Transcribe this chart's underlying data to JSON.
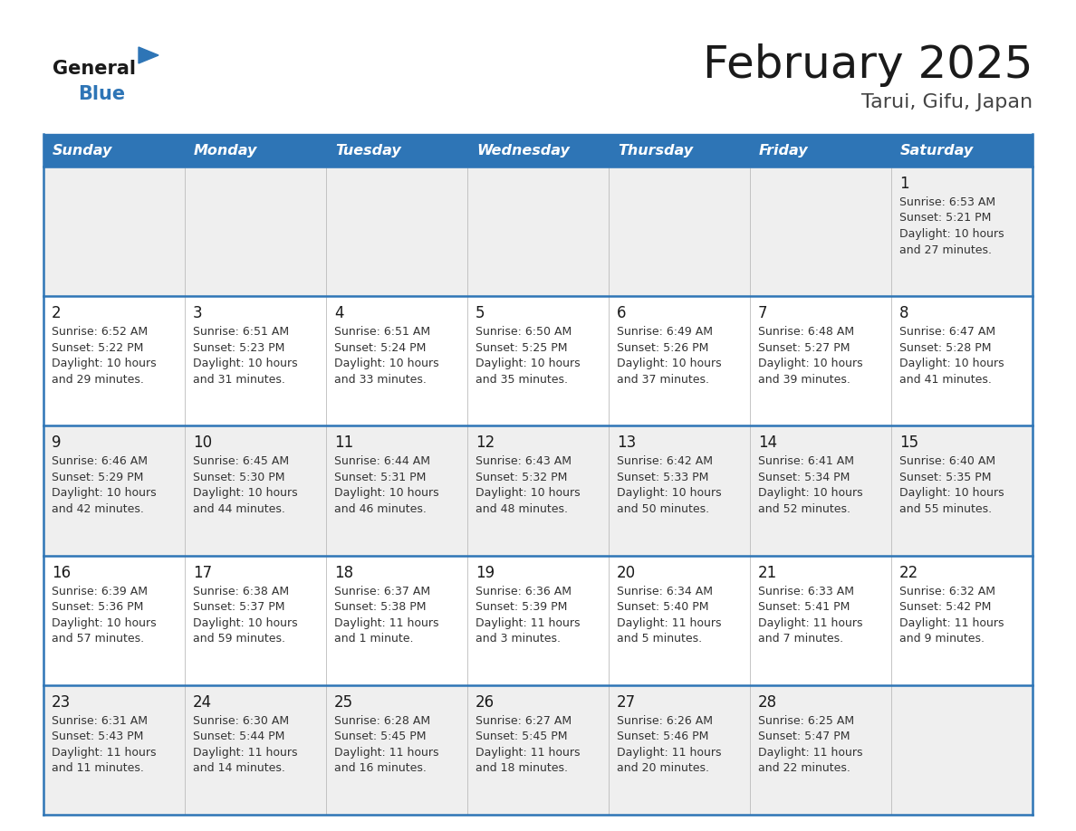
{
  "title": "February 2025",
  "subtitle": "Tarui, Gifu, Japan",
  "header_bg": "#2E75B6",
  "header_text_color": "#FFFFFF",
  "cell_bg_odd": "#EFEFEF",
  "cell_bg_even": "#FFFFFF",
  "cell_border_color": "#2E75B6",
  "day_headers": [
    "Sunday",
    "Monday",
    "Tuesday",
    "Wednesday",
    "Thursday",
    "Friday",
    "Saturday"
  ],
  "title_color": "#1a1a1a",
  "subtitle_color": "#444444",
  "day_number_color": "#1a1a1a",
  "cell_text_color": "#333333",
  "logo_general_color": "#1a1a1a",
  "logo_blue_color": "#2E75B6",
  "logo_triangle_color": "#2E75B6",
  "calendar_data": [
    [
      null,
      null,
      null,
      null,
      null,
      null,
      {
        "day": 1,
        "sunrise": "6:53 AM",
        "sunset": "5:21 PM",
        "daylight": "10 hours and 27 minutes."
      }
    ],
    [
      {
        "day": 2,
        "sunrise": "6:52 AM",
        "sunset": "5:22 PM",
        "daylight": "10 hours and 29 minutes."
      },
      {
        "day": 3,
        "sunrise": "6:51 AM",
        "sunset": "5:23 PM",
        "daylight": "10 hours and 31 minutes."
      },
      {
        "day": 4,
        "sunrise": "6:51 AM",
        "sunset": "5:24 PM",
        "daylight": "10 hours and 33 minutes."
      },
      {
        "day": 5,
        "sunrise": "6:50 AM",
        "sunset": "5:25 PM",
        "daylight": "10 hours and 35 minutes."
      },
      {
        "day": 6,
        "sunrise": "6:49 AM",
        "sunset": "5:26 PM",
        "daylight": "10 hours and 37 minutes."
      },
      {
        "day": 7,
        "sunrise": "6:48 AM",
        "sunset": "5:27 PM",
        "daylight": "10 hours and 39 minutes."
      },
      {
        "day": 8,
        "sunrise": "6:47 AM",
        "sunset": "5:28 PM",
        "daylight": "10 hours and 41 minutes."
      }
    ],
    [
      {
        "day": 9,
        "sunrise": "6:46 AM",
        "sunset": "5:29 PM",
        "daylight": "10 hours and 42 minutes."
      },
      {
        "day": 10,
        "sunrise": "6:45 AM",
        "sunset": "5:30 PM",
        "daylight": "10 hours and 44 minutes."
      },
      {
        "day": 11,
        "sunrise": "6:44 AM",
        "sunset": "5:31 PM",
        "daylight": "10 hours and 46 minutes."
      },
      {
        "day": 12,
        "sunrise": "6:43 AM",
        "sunset": "5:32 PM",
        "daylight": "10 hours and 48 minutes."
      },
      {
        "day": 13,
        "sunrise": "6:42 AM",
        "sunset": "5:33 PM",
        "daylight": "10 hours and 50 minutes."
      },
      {
        "day": 14,
        "sunrise": "6:41 AM",
        "sunset": "5:34 PM",
        "daylight": "10 hours and 52 minutes."
      },
      {
        "day": 15,
        "sunrise": "6:40 AM",
        "sunset": "5:35 PM",
        "daylight": "10 hours and 55 minutes."
      }
    ],
    [
      {
        "day": 16,
        "sunrise": "6:39 AM",
        "sunset": "5:36 PM",
        "daylight": "10 hours and 57 minutes."
      },
      {
        "day": 17,
        "sunrise": "6:38 AM",
        "sunset": "5:37 PM",
        "daylight": "10 hours and 59 minutes."
      },
      {
        "day": 18,
        "sunrise": "6:37 AM",
        "sunset": "5:38 PM",
        "daylight": "11 hours and 1 minute."
      },
      {
        "day": 19,
        "sunrise": "6:36 AM",
        "sunset": "5:39 PM",
        "daylight": "11 hours and 3 minutes."
      },
      {
        "day": 20,
        "sunrise": "6:34 AM",
        "sunset": "5:40 PM",
        "daylight": "11 hours and 5 minutes."
      },
      {
        "day": 21,
        "sunrise": "6:33 AM",
        "sunset": "5:41 PM",
        "daylight": "11 hours and 7 minutes."
      },
      {
        "day": 22,
        "sunrise": "6:32 AM",
        "sunset": "5:42 PM",
        "daylight": "11 hours and 9 minutes."
      }
    ],
    [
      {
        "day": 23,
        "sunrise": "6:31 AM",
        "sunset": "5:43 PM",
        "daylight": "11 hours and 11 minutes."
      },
      {
        "day": 24,
        "sunrise": "6:30 AM",
        "sunset": "5:44 PM",
        "daylight": "11 hours and 14 minutes."
      },
      {
        "day": 25,
        "sunrise": "6:28 AM",
        "sunset": "5:45 PM",
        "daylight": "11 hours and 16 minutes."
      },
      {
        "day": 26,
        "sunrise": "6:27 AM",
        "sunset": "5:45 PM",
        "daylight": "11 hours and 18 minutes."
      },
      {
        "day": 27,
        "sunrise": "6:26 AM",
        "sunset": "5:46 PM",
        "daylight": "11 hours and 20 minutes."
      },
      {
        "day": 28,
        "sunrise": "6:25 AM",
        "sunset": "5:47 PM",
        "daylight": "11 hours and 22 minutes."
      },
      null
    ]
  ]
}
